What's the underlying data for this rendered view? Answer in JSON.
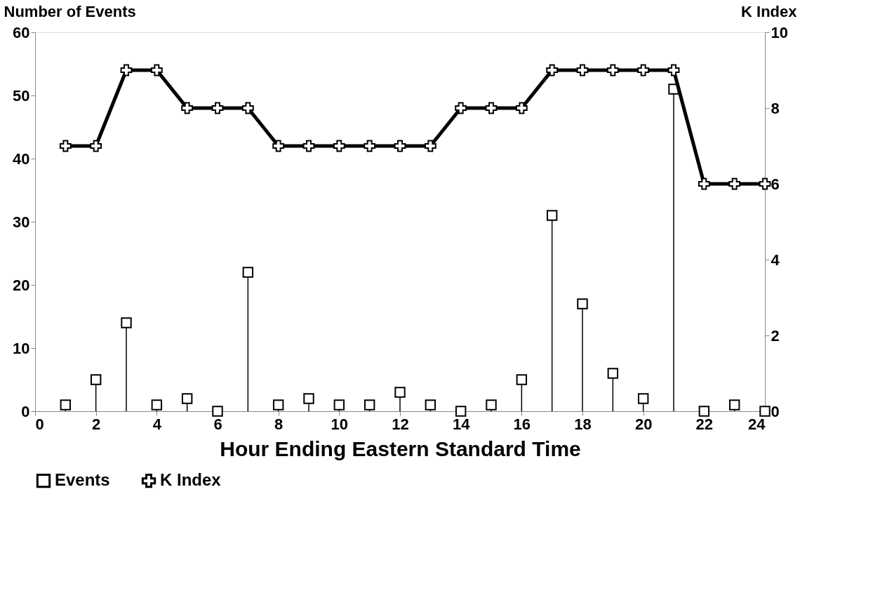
{
  "chart_data": {
    "type": "line",
    "xlabel": "Hour Ending Eastern Standard Time",
    "ylabel": "Number of Events",
    "y2label": "K Index",
    "xlim": [
      0,
      24
    ],
    "xticks": [
      0,
      2,
      4,
      6,
      8,
      10,
      12,
      14,
      16,
      18,
      20,
      22,
      24
    ],
    "ylim": [
      0,
      60
    ],
    "yticks": [
      0,
      10,
      20,
      30,
      40,
      50,
      60
    ],
    "y2lim": [
      0,
      10
    ],
    "y2ticks": [
      0,
      2,
      4,
      6,
      8,
      10
    ],
    "legend": "bottom",
    "series": [
      {
        "name": "Events",
        "type": "lollipop",
        "marker": "square",
        "color": "#000000",
        "x": [
          1,
          2,
          3,
          4,
          5,
          6,
          7,
          8,
          9,
          10,
          11,
          12,
          13,
          14,
          15,
          16,
          17,
          18,
          19,
          20,
          21,
          22,
          23,
          24
        ],
        "values": [
          1,
          5,
          14,
          1,
          2,
          0,
          22,
          1,
          2,
          1,
          1,
          3,
          1,
          0,
          1,
          5,
          31,
          17,
          6,
          2,
          51,
          0,
          1,
          0
        ]
      },
      {
        "name": "K Index",
        "type": "line",
        "marker": "cross",
        "line_style": "solid",
        "axis": "y2",
        "color": "#000000",
        "x": [
          1,
          2,
          3,
          4,
          5,
          6,
          7,
          8,
          9,
          10,
          11,
          12,
          13,
          14,
          15,
          16,
          17,
          18,
          19,
          20,
          21,
          22,
          23,
          24
        ],
        "values": [
          7,
          7,
          9,
          9,
          8,
          8,
          8,
          7,
          7,
          7,
          7,
          7,
          7,
          8,
          8,
          8,
          9,
          9,
          9,
          9,
          9,
          6,
          6,
          6
        ]
      }
    ]
  }
}
